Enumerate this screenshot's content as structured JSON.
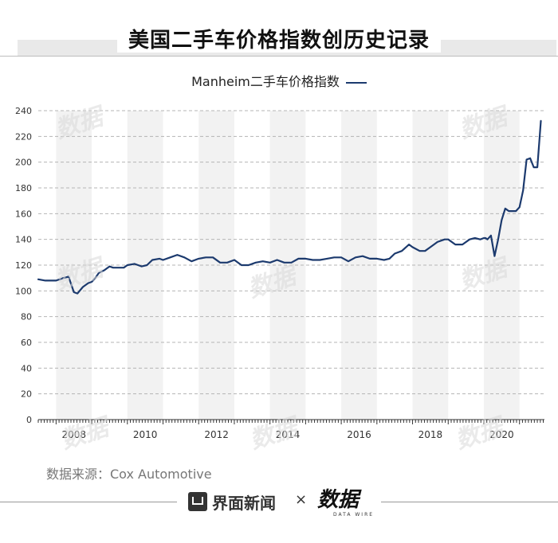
{
  "title": "美国二手车价格指数创历史记录",
  "legend": {
    "label": "Manheim二手车价格指数"
  },
  "source": "数据来源：Cox Automotive",
  "footer": {
    "brand": "界面新闻",
    "times": "×",
    "partner": "数据",
    "partner_sub": "DATA WIRE"
  },
  "watermark": "数据",
  "colors": {
    "line": "#1c3a6e",
    "band": "#f2f2f2",
    "grid": "#b5b5b5"
  },
  "chart_data": {
    "type": "line",
    "title": "美国二手车价格指数创历史记录",
    "xlabel": "",
    "ylabel": "",
    "xlim": [
      2007.5,
      2021.7
    ],
    "ylim": [
      0,
      240
    ],
    "yticks": [
      0,
      20,
      40,
      60,
      80,
      100,
      120,
      140,
      160,
      180,
      200,
      220,
      240
    ],
    "xticks": [
      2008,
      2010,
      2012,
      2014,
      2016,
      2018,
      2020
    ],
    "xtick_labels": [
      "2008",
      "2010",
      "2012",
      "2014",
      "2016",
      "2018",
      "2020"
    ],
    "grid": "horizontal-dashed",
    "legend_position": "top-center",
    "series": [
      {
        "name": "Manheim二手车价格指数",
        "x": [
          2007.5,
          2007.7,
          2007.9,
          2008.0,
          2008.2,
          2008.35,
          2008.5,
          2008.6,
          2008.75,
          2008.9,
          2009.0,
          2009.1,
          2009.2,
          2009.35,
          2009.5,
          2009.6,
          2009.75,
          2009.9,
          2010.0,
          2010.2,
          2010.4,
          2010.55,
          2010.7,
          2010.9,
          2011.0,
          2011.2,
          2011.4,
          2011.6,
          2011.8,
          2012.0,
          2012.2,
          2012.4,
          2012.6,
          2012.8,
          2013.0,
          2013.2,
          2013.4,
          2013.6,
          2013.8,
          2014.0,
          2014.2,
          2014.4,
          2014.6,
          2014.8,
          2015.0,
          2015.2,
          2015.4,
          2015.6,
          2015.8,
          2016.0,
          2016.2,
          2016.4,
          2016.6,
          2016.8,
          2017.0,
          2017.2,
          2017.35,
          2017.5,
          2017.7,
          2017.9,
          2018.0,
          2018.2,
          2018.35,
          2018.5,
          2018.7,
          2018.9,
          2019.0,
          2019.2,
          2019.4,
          2019.6,
          2019.75,
          2019.9,
          2020.0,
          2020.05,
          2020.1,
          2020.2,
          2020.3,
          2020.4,
          2020.5,
          2020.6,
          2020.7,
          2020.8,
          2020.9,
          2021.0,
          2021.1,
          2021.2,
          2021.3,
          2021.4,
          2021.5,
          2021.6
        ],
        "y": [
          109,
          108,
          108,
          108,
          110,
          111,
          99,
          98,
          103,
          106,
          107,
          110,
          114,
          116,
          119,
          118,
          118,
          118,
          120,
          121,
          119,
          120,
          124,
          125,
          124,
          126,
          128,
          126,
          123,
          125,
          126,
          126,
          122,
          122,
          124,
          120,
          120,
          122,
          123,
          122,
          124,
          122,
          122,
          125,
          125,
          124,
          124,
          125,
          126,
          126,
          123,
          126,
          127,
          125,
          125,
          124,
          125,
          129,
          131,
          136,
          134,
          131,
          131,
          134,
          138,
          140,
          140,
          136,
          136,
          140,
          141,
          140,
          141,
          141,
          140,
          143,
          127,
          140,
          155,
          164,
          162,
          162,
          162,
          165,
          178,
          202,
          203,
          196,
          196,
          232
        ]
      }
    ]
  }
}
